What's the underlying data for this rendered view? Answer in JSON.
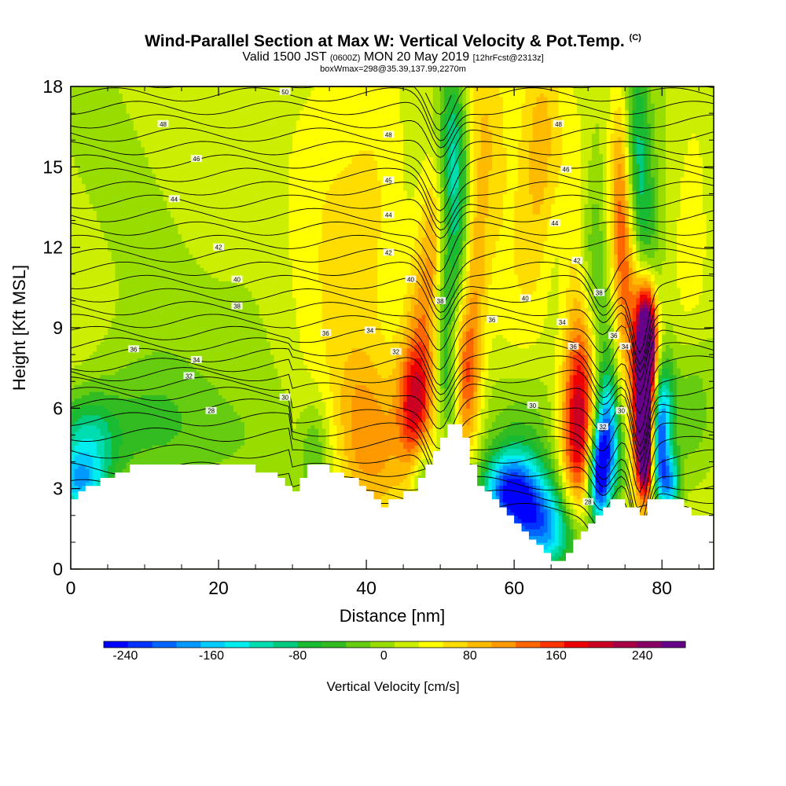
{
  "header": {
    "title": "Wind-Parallel Section at Max W: Vertical Velocity & Pot.Temp.",
    "copyright": "(C)",
    "valid_prefix": "Valid 1500 JST",
    "valid_zulu": "(0600Z)",
    "valid_suffix": "MON 20 May 2019",
    "forecast": "[12hrFcst@2313z]",
    "box_info": "boxWmax=298@35.39,137.99,2270m"
  },
  "chart_data": {
    "type": "heatmap",
    "title": "Wind-Parallel Section at Max W: Vertical Velocity & Pot.Temp.",
    "xlabel": "Distance [nm]",
    "ylabel": "Height [Kft MSL]",
    "xlim": [
      0,
      87
    ],
    "ylim": [
      0,
      18
    ],
    "xticks": [
      "0",
      "20",
      "40",
      "60",
      "80"
    ],
    "yticks": [
      "0",
      "3",
      "6",
      "9",
      "12",
      "15",
      "18"
    ],
    "colorbar": {
      "title": "Vertical Velocity [cm/s]",
      "range": [
        -260,
        280
      ],
      "ticks": [
        "-240",
        "-160",
        "-80",
        "0",
        "80",
        "160",
        "240"
      ],
      "colors": [
        "#0000ff",
        "#0033ff",
        "#0066ff",
        "#0099ff",
        "#00ccff",
        "#00eeee",
        "#00ddb0",
        "#00cc80",
        "#19bb33",
        "#33bb22",
        "#66cc11",
        "#99dd00",
        "#ccee00",
        "#ffff00",
        "#ffdd00",
        "#ffbb00",
        "#ff9900",
        "#ff6600",
        "#ff3300",
        "#ee0000",
        "#cc0022",
        "#aa0044",
        "#880066",
        "#660088"
      ]
    },
    "terrain_kft": [
      [
        0,
        2.6
      ],
      [
        1,
        2.6
      ],
      [
        1,
        2.9
      ],
      [
        2,
        2.9
      ],
      [
        2,
        3.1
      ],
      [
        4,
        3.1
      ],
      [
        4,
        3.4
      ],
      [
        6,
        3.4
      ],
      [
        6,
        3.6
      ],
      [
        8,
        3.6
      ],
      [
        8,
        3.9
      ],
      [
        24,
        3.9
      ],
      [
        24,
        3.9
      ],
      [
        25,
        3.9
      ],
      [
        25,
        3.6
      ],
      [
        28,
        3.6
      ],
      [
        28,
        3.4
      ],
      [
        29,
        3.4
      ],
      [
        29,
        3.1
      ],
      [
        30,
        3.1
      ],
      [
        30,
        2.9
      ],
      [
        31,
        2.9
      ],
      [
        31,
        3.4
      ],
      [
        32,
        3.4
      ],
      [
        32,
        3.9
      ],
      [
        35,
        3.9
      ],
      [
        35,
        3.6
      ],
      [
        37,
        3.6
      ],
      [
        37,
        3.4
      ],
      [
        39,
        3.4
      ],
      [
        39,
        3.1
      ],
      [
        40,
        3.1
      ],
      [
        40,
        2.9
      ],
      [
        41,
        2.9
      ],
      [
        41,
        2.6
      ],
      [
        42,
        2.6
      ],
      [
        42,
        2.3
      ],
      [
        43,
        2.3
      ],
      [
        43,
        2.6
      ],
      [
        45,
        2.6
      ],
      [
        45,
        2.9
      ],
      [
        47,
        2.9
      ],
      [
        47,
        3.4
      ],
      [
        48,
        3.4
      ],
      [
        48,
        3.9
      ],
      [
        49,
        3.9
      ],
      [
        49,
        4.4
      ],
      [
        50,
        4.4
      ],
      [
        50,
        4.9
      ],
      [
        51,
        4.9
      ],
      [
        51,
        5.4
      ],
      [
        53,
        5.4
      ],
      [
        53,
        4.9
      ],
      [
        54,
        4.9
      ],
      [
        54,
        3.9
      ],
      [
        55,
        3.9
      ],
      [
        55,
        3.1
      ],
      [
        56,
        3.1
      ],
      [
        56,
        2.9
      ],
      [
        57,
        2.9
      ],
      [
        57,
        2.6
      ],
      [
        58,
        2.6
      ],
      [
        58,
        2.3
      ],
      [
        59,
        2.3
      ],
      [
        59,
        2.0
      ],
      [
        60,
        2.0
      ],
      [
        60,
        1.7
      ],
      [
        61,
        1.7
      ],
      [
        61,
        1.4
      ],
      [
        62,
        1.4
      ],
      [
        62,
        1.1
      ],
      [
        63,
        1.1
      ],
      [
        63,
        0.9
      ],
      [
        64,
        0.9
      ],
      [
        64,
        0.6
      ],
      [
        65,
        0.6
      ],
      [
        65,
        0.3
      ],
      [
        67,
        0.3
      ],
      [
        67,
        0.6
      ],
      [
        68,
        0.6
      ],
      [
        68,
        1.1
      ],
      [
        69,
        1.1
      ],
      [
        69,
        1.4
      ],
      [
        70,
        1.4
      ],
      [
        70,
        1.7
      ],
      [
        71,
        1.7
      ],
      [
        71,
        2.0
      ],
      [
        72,
        2.0
      ],
      [
        72,
        2.3
      ],
      [
        73,
        2.3
      ],
      [
        73,
        2.6
      ],
      [
        75,
        2.6
      ],
      [
        75,
        2.3
      ],
      [
        77,
        2.3
      ],
      [
        77,
        2.0
      ],
      [
        78,
        2.0
      ],
      [
        78,
        2.6
      ],
      [
        83,
        2.6
      ],
      [
        83,
        2.3
      ],
      [
        84,
        2.3
      ],
      [
        84,
        2.0
      ],
      [
        85,
        2.0
      ],
      [
        85,
        2.0
      ],
      [
        87,
        2.0
      ]
    ],
    "vv_features": [
      {
        "x": 2,
        "y": 4.6,
        "w": -120,
        "sx": 3,
        "sy": 1.3
      },
      {
        "x": 1,
        "y": 3.1,
        "w": -130,
        "sx": 2.5,
        "sy": 0.8
      },
      {
        "x": 10,
        "y": 5.5,
        "w": -50,
        "sx": 6,
        "sy": 2
      },
      {
        "x": 26,
        "y": 12,
        "w": -15,
        "sx": 4,
        "sy": 6
      },
      {
        "x": 36,
        "y": 15,
        "w": 35,
        "sx": 5,
        "sy": 4
      },
      {
        "x": 42,
        "y": 14,
        "w": 30,
        "sx": 3,
        "sy": 5
      },
      {
        "x": 36,
        "y": 8,
        "w": 20,
        "sx": 3,
        "sy": 3
      },
      {
        "x": 42,
        "y": 4.5,
        "w": 60,
        "sx": 3,
        "sy": 2
      },
      {
        "x": 33,
        "y": 4.2,
        "w": -60,
        "sx": 1.4,
        "sy": 1.5
      },
      {
        "x": 39,
        "y": 5.5,
        "w": 40,
        "sx": 2,
        "sy": 2
      },
      {
        "x": 46.5,
        "y": 6.2,
        "w": 140,
        "sx": 1.6,
        "sy": 1.6
      },
      {
        "x": 47.5,
        "y": 9,
        "w": 80,
        "sx": 1.5,
        "sy": 2.5
      },
      {
        "x": 49.5,
        "y": 12,
        "w": 90,
        "sx": 1.3,
        "sy": 2.5
      },
      {
        "x": 51.5,
        "y": 16,
        "w": -100,
        "sx": 1.4,
        "sy": 2.4
      },
      {
        "x": 52.5,
        "y": 13,
        "w": -80,
        "sx": 1.2,
        "sy": 2.5
      },
      {
        "x": 50.5,
        "y": 10,
        "w": -90,
        "sx": 1,
        "sy": 2.2
      },
      {
        "x": 51.5,
        "y": 6.5,
        "w": -60,
        "sx": 1,
        "sy": 1.2
      },
      {
        "x": 53.5,
        "y": 7,
        "w": 130,
        "sx": 1.3,
        "sy": 2
      },
      {
        "x": 54.5,
        "y": 11,
        "w": 70,
        "sx": 1.3,
        "sy": 2.5
      },
      {
        "x": 47.5,
        "y": 3.4,
        "w": -70,
        "sx": 1,
        "sy": 1
      },
      {
        "x": 56,
        "y": 16,
        "w": 50,
        "sx": 2,
        "sy": 3
      },
      {
        "x": 59,
        "y": 3,
        "w": -160,
        "sx": 2.5,
        "sy": 1
      },
      {
        "x": 62,
        "y": 2.2,
        "w": -140,
        "sx": 3,
        "sy": 1.2
      },
      {
        "x": 65,
        "y": 1.3,
        "w": -110,
        "sx": 3,
        "sy": 1
      },
      {
        "x": 61,
        "y": 4.5,
        "w": -50,
        "sx": 3,
        "sy": 2
      },
      {
        "x": 60,
        "y": 10,
        "w": 30,
        "sx": 3,
        "sy": 3
      },
      {
        "x": 64,
        "y": 15.5,
        "w": 70,
        "sx": 2,
        "sy": 3.5
      },
      {
        "x": 66,
        "y": 12.5,
        "w": -60,
        "sx": 1.8,
        "sy": 3
      },
      {
        "x": 68.5,
        "y": 4.8,
        "w": 160,
        "sx": 1.6,
        "sy": 2.2
      },
      {
        "x": 69.5,
        "y": 8,
        "w": 100,
        "sx": 1.6,
        "sy": 2.2
      },
      {
        "x": 68,
        "y": 13,
        "w": 60,
        "sx": 2,
        "sy": 3
      },
      {
        "x": 70.5,
        "y": 11,
        "w": -90,
        "sx": 1.5,
        "sy": 3
      },
      {
        "x": 72.5,
        "y": 7,
        "w": -70,
        "sx": 1.2,
        "sy": 2.5
      },
      {
        "x": 71.5,
        "y": 3.4,
        "w": -250,
        "sx": 1,
        "sy": 1.2
      },
      {
        "x": 72.5,
        "y": 5.2,
        "w": -150,
        "sx": 1.1,
        "sy": 1.4
      },
      {
        "x": 74,
        "y": 4,
        "w": -60,
        "sx": 1,
        "sy": 1.2
      },
      {
        "x": 74.5,
        "y": 14,
        "w": 110,
        "sx": 1.2,
        "sy": 3
      },
      {
        "x": 75.5,
        "y": 10,
        "w": 80,
        "sx": 1.3,
        "sy": 2.5
      },
      {
        "x": 76.5,
        "y": 15.5,
        "w": -100,
        "sx": 1.2,
        "sy": 3
      },
      {
        "x": 78,
        "y": 12,
        "w": -60,
        "sx": 1.2,
        "sy": 2.5
      },
      {
        "x": 77.6,
        "y": 6.5,
        "w": 290,
        "sx": 1,
        "sy": 2.3
      },
      {
        "x": 78,
        "y": 8.8,
        "w": 230,
        "sx": 0.9,
        "sy": 1.3
      },
      {
        "x": 77.8,
        "y": 4.3,
        "w": 180,
        "sx": 0.8,
        "sy": 1
      },
      {
        "x": 79.5,
        "y": 4.6,
        "w": -200,
        "sx": 0.8,
        "sy": 1.4
      },
      {
        "x": 80.5,
        "y": 6,
        "w": -120,
        "sx": 1,
        "sy": 1.5
      },
      {
        "x": 81,
        "y": 3.2,
        "w": -180,
        "sx": 1,
        "sy": 0.8
      },
      {
        "x": 84,
        "y": 6,
        "w": -60,
        "sx": 2,
        "sy": 2
      },
      {
        "x": 84,
        "y": 12,
        "w": 40,
        "sx": 2,
        "sy": 4
      }
    ],
    "theta_labels": [
      {
        "x": 29,
        "y": 17.8,
        "text": "50"
      },
      {
        "x": 12.5,
        "y": 16.6,
        "text": "48"
      },
      {
        "x": 17,
        "y": 15.3,
        "text": "46"
      },
      {
        "x": 14,
        "y": 13.8,
        "text": "44"
      },
      {
        "x": 20,
        "y": 12,
        "text": "42"
      },
      {
        "x": 22.5,
        "y": 10.8,
        "text": "40"
      },
      {
        "x": 22.5,
        "y": 9.8,
        "text": "38"
      },
      {
        "x": 8.5,
        "y": 8.2,
        "text": "36"
      },
      {
        "x": 17,
        "y": 7.8,
        "text": "34"
      },
      {
        "x": 16,
        "y": 7.2,
        "text": "32"
      },
      {
        "x": 29,
        "y": 6.4,
        "text": "30"
      },
      {
        "x": 19,
        "y": 5.9,
        "text": "28"
      },
      {
        "x": 34.5,
        "y": 8.8,
        "text": "36"
      },
      {
        "x": 40.5,
        "y": 8.9,
        "text": "34"
      },
      {
        "x": 44,
        "y": 8.1,
        "text": "32"
      },
      {
        "x": 43,
        "y": 16.2,
        "text": "48"
      },
      {
        "x": 43,
        "y": 14.5,
        "text": "45"
      },
      {
        "x": 43,
        "y": 13.2,
        "text": "44"
      },
      {
        "x": 43,
        "y": 11.8,
        "text": "42"
      },
      {
        "x": 46,
        "y": 10.8,
        "text": "40"
      },
      {
        "x": 50,
        "y": 10,
        "text": "38"
      },
      {
        "x": 57,
        "y": 9.3,
        "text": "36"
      },
      {
        "x": 61.5,
        "y": 10.1,
        "text": "40"
      },
      {
        "x": 66,
        "y": 16.6,
        "text": "48"
      },
      {
        "x": 67,
        "y": 14.9,
        "text": "46"
      },
      {
        "x": 65.5,
        "y": 12.9,
        "text": "44"
      },
      {
        "x": 68.5,
        "y": 11.5,
        "text": "42"
      },
      {
        "x": 71.5,
        "y": 10.3,
        "text": "38"
      },
      {
        "x": 66.5,
        "y": 9.2,
        "text": "34"
      },
      {
        "x": 68,
        "y": 8.3,
        "text": "36"
      },
      {
        "x": 73.5,
        "y": 8.7,
        "text": "36"
      },
      {
        "x": 75,
        "y": 8.3,
        "text": "34"
      },
      {
        "x": 62.5,
        "y": 6.1,
        "text": "30"
      },
      {
        "x": 72,
        "y": 5.3,
        "text": "32"
      },
      {
        "x": 74.5,
        "y": 5.9,
        "text": "30"
      },
      {
        "x": 70,
        "y": 2.5,
        "text": "28"
      }
    ]
  }
}
